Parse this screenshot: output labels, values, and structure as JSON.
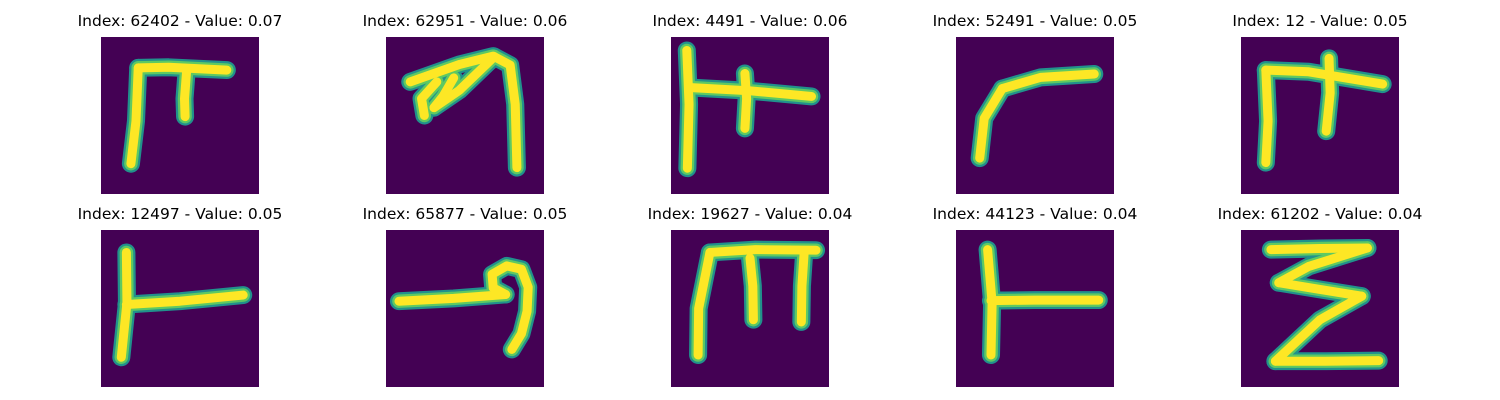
{
  "colors": {
    "background": "#440154",
    "stroke_edge": "#21918c",
    "stroke_mid": "#5ec962",
    "stroke_core": "#fde725"
  },
  "panels": [
    {
      "title": "Index: 62402 - Value: 0.07",
      "strokes": [
        [
          [
            5.3,
            22.6
          ],
          [
            6.2,
            15
          ],
          [
            6.6,
            5.5
          ]
        ],
        [
          [
            6.6,
            5.5
          ],
          [
            12,
            5.4
          ],
          [
            22.3,
            5.9
          ]
        ],
        [
          [
            15.2,
            5.7
          ],
          [
            14.8,
            11
          ],
          [
            14.9,
            14.2
          ]
        ]
      ]
    },
    {
      "title": "Index: 62951 - Value: 0.06",
      "strokes": [
        [
          [
            4.3,
            8
          ],
          [
            13,
            4.9
          ],
          [
            19,
            3.4
          ],
          [
            22,
            5
          ],
          [
            22.9,
            12
          ],
          [
            23.2,
            23.3
          ]
        ],
        [
          [
            19.2,
            3.5
          ],
          [
            13,
            9.5
          ],
          [
            8.5,
            12.6
          ]
        ],
        [
          [
            12,
            7.3
          ],
          [
            10.1,
            10.6
          ],
          [
            8.5,
            12.6
          ]
        ],
        [
          [
            9,
            8
          ],
          [
            6.3,
            11
          ],
          [
            6.8,
            14
          ]
        ]
      ]
    },
    {
      "title": "Index: 4491 - Value: 0.06",
      "strokes": [
        [
          [
            2.8,
            2.4
          ],
          [
            3.2,
            12
          ],
          [
            2.9,
            23.4
          ]
        ],
        [
          [
            3.2,
            9
          ],
          [
            14,
            9.6
          ],
          [
            24.9,
            10.6
          ]
        ],
        [
          [
            13.1,
            6.5
          ],
          [
            13.4,
            11
          ],
          [
            13.1,
            16.3
          ]
        ]
      ]
    },
    {
      "title": "Index: 52491 - Value: 0.05",
      "strokes": [
        [
          [
            4.2,
            21.6
          ],
          [
            5,
            14.5
          ],
          [
            8.2,
            9.2
          ]
        ],
        [
          [
            8.2,
            9.2
          ],
          [
            15,
            7.2
          ],
          [
            24.5,
            6.6
          ]
        ]
      ]
    },
    {
      "title": "Index: 12 - Value: 0.05",
      "strokes": [
        [
          [
            4.4,
            22.4
          ],
          [
            4.8,
            15
          ],
          [
            4.4,
            5.9
          ]
        ],
        [
          [
            4.4,
            5.9
          ],
          [
            12,
            6.2
          ],
          [
            25.1,
            8.4
          ]
        ],
        [
          [
            15.6,
            3.8
          ],
          [
            15.8,
            10
          ],
          [
            15.1,
            16.8
          ]
        ]
      ]
    },
    {
      "title": "Index: 12497 - Value: 0.05",
      "strokes": [
        [
          [
            4.5,
            4
          ],
          [
            4.6,
            13
          ],
          [
            3.6,
            22.7
          ]
        ],
        [
          [
            4.5,
            13.3
          ],
          [
            14,
            12.7
          ],
          [
            25.2,
            11.6
          ]
        ]
      ]
    },
    {
      "title": "Index: 65877 - Value: 0.05",
      "strokes": [
        [
          [
            2.3,
            12.7
          ],
          [
            12,
            12.2
          ],
          [
            21.2,
            11.5
          ]
        ],
        [
          [
            21.2,
            11.5
          ],
          [
            19,
            10.3
          ],
          [
            18.8,
            7.9
          ],
          [
            21.4,
            6.4
          ],
          [
            24,
            7
          ],
          [
            25.2,
            10.2
          ],
          [
            25,
            14.5
          ],
          [
            24,
            18.5
          ],
          [
            22.3,
            21.3
          ]
        ]
      ]
    },
    {
      "title": "Index: 19627 - Value: 0.04",
      "strokes": [
        [
          [
            4.8,
            22.3
          ],
          [
            4.9,
            14
          ],
          [
            6.9,
            4
          ]
        ],
        [
          [
            6.9,
            4
          ],
          [
            15,
            3.5
          ],
          [
            25.7,
            3.6
          ]
        ],
        [
          [
            14,
            5
          ],
          [
            14.5,
            10
          ],
          [
            14.6,
            16
          ]
        ],
        [
          [
            23.6,
            4
          ],
          [
            23.2,
            10
          ],
          [
            23.1,
            16.4
          ]
        ]
      ]
    },
    {
      "title": "Index: 44123 - Value: 0.04",
      "strokes": [
        [
          [
            5.6,
            3.5
          ],
          [
            6.4,
            13
          ],
          [
            6.2,
            22.3
          ]
        ],
        [
          [
            6.2,
            12.6
          ],
          [
            14,
            12.5
          ],
          [
            25.3,
            12.5
          ]
        ]
      ]
    },
    {
      "title": "Index: 61202 - Value: 0.04",
      "strokes": [
        [
          [
            5.3,
            3.5
          ],
          [
            14,
            3.3
          ],
          [
            22.4,
            3.2
          ]
        ],
        [
          [
            22.4,
            3.2
          ],
          [
            12,
            6.5
          ],
          [
            6.7,
            9.4
          ]
        ],
        [
          [
            6.7,
            9.4
          ],
          [
            14,
            10.6
          ],
          [
            21.4,
            11.8
          ]
        ],
        [
          [
            21.4,
            11.8
          ],
          [
            14,
            16
          ],
          [
            6.1,
            23.4
          ]
        ],
        [
          [
            6.1,
            23.4
          ],
          [
            15,
            23.4
          ],
          [
            24.4,
            23.3
          ]
        ]
      ]
    }
  ]
}
